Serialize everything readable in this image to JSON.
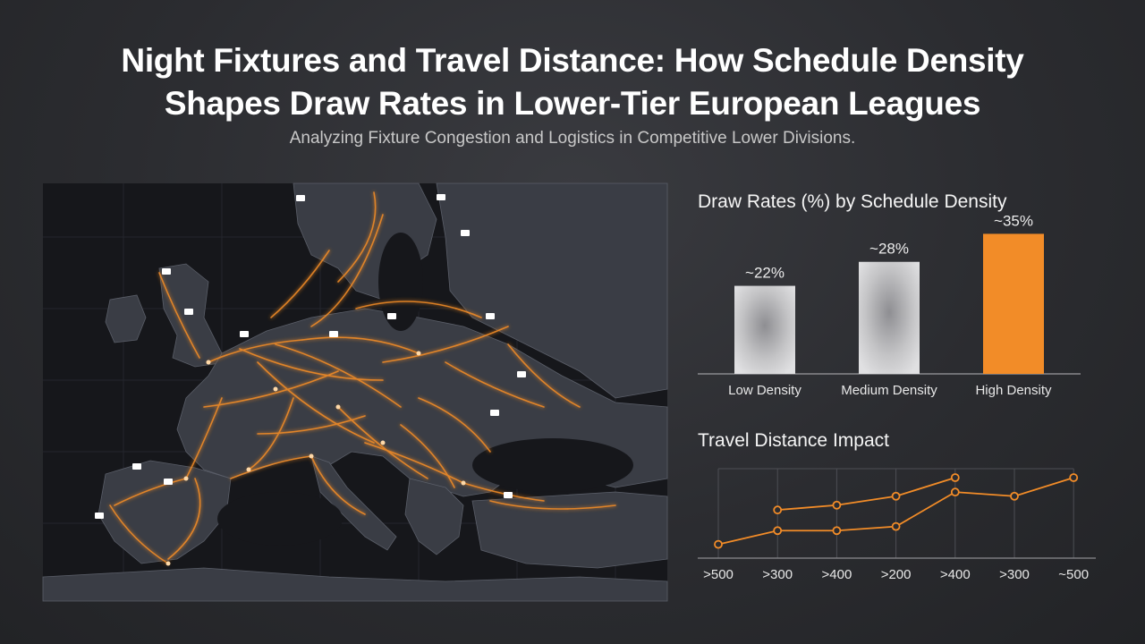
{
  "header": {
    "title_line1": "Night Fixtures and Travel Distance: How Schedule Density",
    "title_line2": "Shapes Draw Rates in Lower-Tier European Leagues",
    "subtitle": "Analyzing Fixture Congestion and Logistics in Competitive Lower Divisions."
  },
  "colors": {
    "accent": "#f28c28",
    "bar_neutral": "#c9c9cb",
    "map_land": "#3a3d45",
    "map_sea": "#16171b"
  },
  "chart_data": [
    {
      "type": "bar",
      "title": "Draw Rates (%) by Schedule Density",
      "categories": [
        "Low Density",
        "Medium Density",
        "High Density"
      ],
      "values": [
        22,
        28,
        35
      ],
      "data_labels": [
        "~22%",
        "~28%",
        "~35%"
      ],
      "highlight_index": 2,
      "ylim": [
        0,
        38
      ],
      "grid": false
    },
    {
      "type": "line",
      "title": "Travel Distance Impact",
      "categories": [
        ">500",
        ">300",
        ">400",
        ">200",
        ">400",
        ">300",
        "~500"
      ],
      "series": [
        {
          "values": [
            null,
            3.5,
            3.85,
            4.5,
            5.85,
            null,
            null
          ]
        },
        {
          "values": [
            1.0,
            2.0,
            2.0,
            2.3,
            4.8,
            4.5,
            5.85
          ]
        }
      ],
      "ylim": [
        0,
        6.5
      ],
      "grid": true
    }
  ],
  "map": {
    "icon": "stadium-icon",
    "route_color": "#f28c28"
  }
}
